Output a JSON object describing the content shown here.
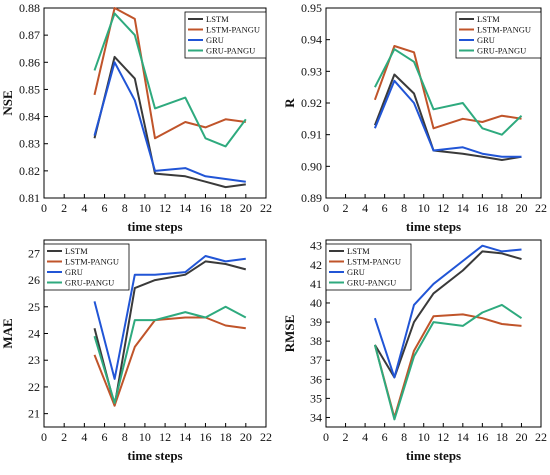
{
  "figure": {
    "colors": {
      "LSTM": "#3a3a3a",
      "LSTM-PANGU": "#c0542a",
      "GRU": "#2155d6",
      "GRU-PANGU": "#2eaa7e"
    }
  },
  "chart_data": [
    {
      "type": "line",
      "xlabel": "time steps",
      "ylabel": "NSE",
      "xlim": [
        0,
        22
      ],
      "ylim": [
        0.81,
        0.88
      ],
      "xticks": [
        0,
        2,
        4,
        6,
        8,
        10,
        12,
        14,
        16,
        18,
        20,
        22
      ],
      "yticks": [
        0.81,
        0.82,
        0.83,
        0.84,
        0.85,
        0.86,
        0.87,
        0.88
      ],
      "ytick_labels": [
        "0.81",
        "0.82",
        "0.83",
        "0.84",
        "0.85",
        "0.86",
        "0.87",
        "0.88"
      ],
      "legend_position": "top-right",
      "x": [
        5,
        7,
        9,
        11,
        14,
        16,
        18,
        20
      ],
      "series": [
        {
          "name": "LSTM",
          "values": [
            0.832,
            0.862,
            0.854,
            0.819,
            0.818,
            0.816,
            0.814,
            0.815
          ]
        },
        {
          "name": "LSTM-PANGU",
          "values": [
            0.848,
            0.88,
            0.876,
            0.832,
            0.838,
            0.836,
            0.839,
            0.838
          ]
        },
        {
          "name": "GRU",
          "values": [
            0.833,
            0.86,
            0.846,
            0.82,
            0.821,
            0.818,
            0.817,
            0.816
          ]
        },
        {
          "name": "GRU-PANGU",
          "values": [
            0.857,
            0.878,
            0.87,
            0.843,
            0.847,
            0.832,
            0.829,
            0.839
          ]
        }
      ]
    },
    {
      "type": "line",
      "xlabel": "time steps",
      "ylabel": "R",
      "xlim": [
        0,
        22
      ],
      "ylim": [
        0.89,
        0.95
      ],
      "xticks": [
        0,
        2,
        4,
        6,
        8,
        10,
        12,
        14,
        16,
        18,
        20,
        22
      ],
      "yticks": [
        0.89,
        0.9,
        0.91,
        0.92,
        0.93,
        0.94,
        0.95
      ],
      "ytick_labels": [
        "0.89",
        "0.90",
        "0.91",
        "0.92",
        "0.93",
        "0.94",
        "0.95"
      ],
      "legend_position": "top-right",
      "x": [
        5,
        7,
        9,
        11,
        14,
        16,
        18,
        20
      ],
      "series": [
        {
          "name": "LSTM",
          "values": [
            0.913,
            0.929,
            0.923,
            0.905,
            0.904,
            0.903,
            0.902,
            0.903
          ]
        },
        {
          "name": "LSTM-PANGU",
          "values": [
            0.921,
            0.938,
            0.936,
            0.912,
            0.915,
            0.914,
            0.916,
            0.915
          ]
        },
        {
          "name": "GRU",
          "values": [
            0.912,
            0.927,
            0.92,
            0.905,
            0.906,
            0.904,
            0.903,
            0.903
          ]
        },
        {
          "name": "GRU-PANGU",
          "values": [
            0.925,
            0.937,
            0.933,
            0.918,
            0.92,
            0.912,
            0.91,
            0.916
          ]
        }
      ]
    },
    {
      "type": "line",
      "xlabel": "time steps",
      "ylabel": "MAE",
      "xlim": [
        0,
        22
      ],
      "ylim": [
        20.5,
        27.5
      ],
      "xticks": [
        0,
        2,
        4,
        6,
        8,
        10,
        12,
        14,
        16,
        18,
        20,
        22
      ],
      "yticks": [
        21,
        22,
        23,
        24,
        25,
        26,
        27
      ],
      "ytick_labels": [
        "21",
        "22",
        "23",
        "24",
        "25",
        "26",
        "27"
      ],
      "legend_position": "top-left",
      "x": [
        5,
        7,
        9,
        11,
        14,
        16,
        18,
        20
      ],
      "series": [
        {
          "name": "LSTM",
          "values": [
            24.2,
            21.3,
            25.7,
            26.0,
            26.2,
            26.7,
            26.6,
            26.4
          ]
        },
        {
          "name": "LSTM-PANGU",
          "values": [
            23.2,
            21.3,
            23.5,
            24.5,
            24.6,
            24.6,
            24.3,
            24.2
          ]
        },
        {
          "name": "GRU",
          "values": [
            25.2,
            22.3,
            26.2,
            26.2,
            26.3,
            26.9,
            26.7,
            26.8
          ]
        },
        {
          "name": "GRU-PANGU",
          "values": [
            23.9,
            21.4,
            24.5,
            24.5,
            24.8,
            24.6,
            25.0,
            24.6
          ]
        }
      ]
    },
    {
      "type": "line",
      "xlabel": "time steps",
      "ylabel": "RMSE",
      "xlim": [
        0,
        22
      ],
      "ylim": [
        33.5,
        43.3
      ],
      "xticks": [
        0,
        2,
        4,
        6,
        8,
        10,
        12,
        14,
        16,
        18,
        20,
        22
      ],
      "yticks": [
        34,
        35,
        36,
        37,
        38,
        39,
        40,
        41,
        42,
        43
      ],
      "ytick_labels": [
        "34",
        "35",
        "36",
        "37",
        "38",
        "39",
        "40",
        "41",
        "42",
        "43"
      ],
      "legend_position": "top-left",
      "x": [
        5,
        7,
        9,
        11,
        14,
        16,
        18,
        20
      ],
      "series": [
        {
          "name": "LSTM",
          "values": [
            37.8,
            36.1,
            39.0,
            40.5,
            41.7,
            42.7,
            42.6,
            42.3
          ]
        },
        {
          "name": "LSTM-PANGU",
          "values": [
            37.8,
            34.0,
            37.5,
            39.3,
            39.4,
            39.2,
            38.9,
            38.8
          ]
        },
        {
          "name": "GRU",
          "values": [
            39.2,
            36.1,
            39.9,
            41.0,
            42.2,
            43.0,
            42.7,
            42.8
          ]
        },
        {
          "name": "GRU-PANGU",
          "values": [
            37.8,
            33.9,
            37.2,
            39.0,
            38.8,
            39.5,
            39.9,
            39.2
          ]
        }
      ]
    }
  ]
}
